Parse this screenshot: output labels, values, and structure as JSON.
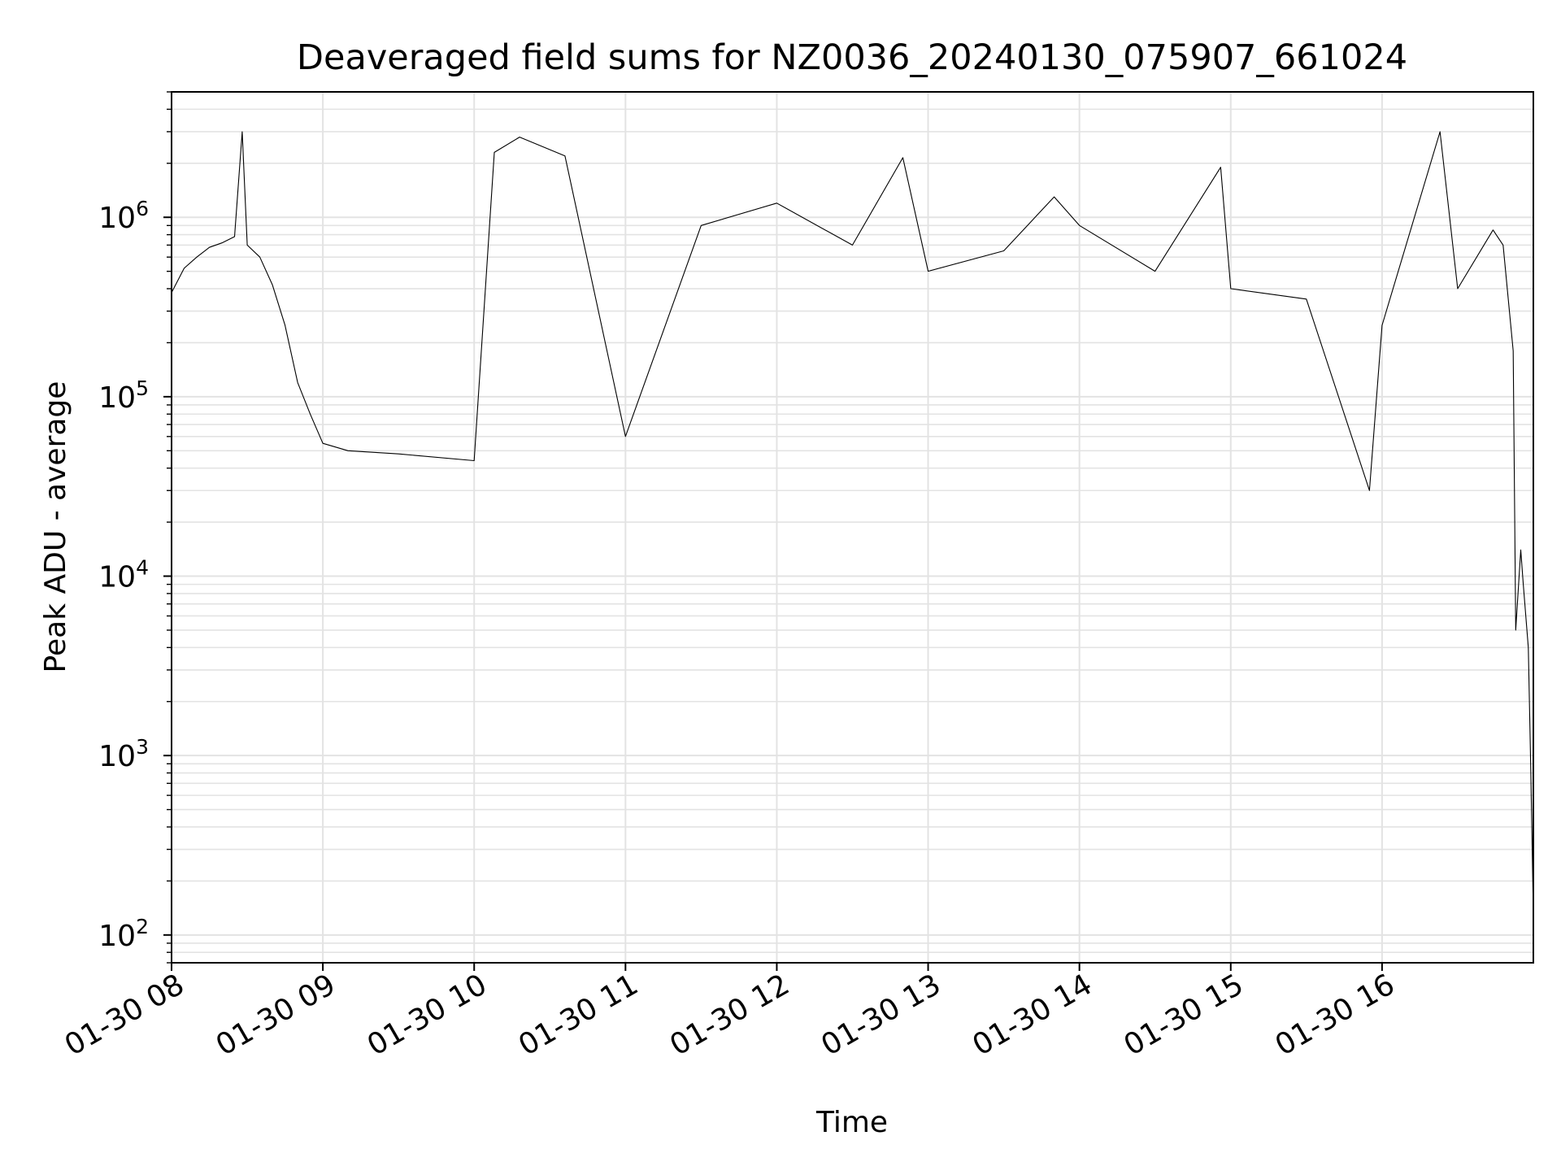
{
  "chart_data": {
    "type": "line",
    "title": "Deaveraged field sums for NZ0036_20240130_075907_661024",
    "xlabel": "Time",
    "ylabel": "Peak ADU - average",
    "x_range": [
      "2024-01-30 08:00",
      "2024-01-30 17:00"
    ],
    "ylim": [
      70,
      5000000
    ],
    "yscale": "log",
    "grid": true,
    "x_ticks": [
      {
        "value": "2024-01-30 08:00",
        "label": "01-30 08"
      },
      {
        "value": "2024-01-30 09:00",
        "label": "01-30 09"
      },
      {
        "value": "2024-01-30 10:00",
        "label": "01-30 10"
      },
      {
        "value": "2024-01-30 11:00",
        "label": "01-30 11"
      },
      {
        "value": "2024-01-30 12:00",
        "label": "01-30 12"
      },
      {
        "value": "2024-01-30 13:00",
        "label": "01-30 13"
      },
      {
        "value": "2024-01-30 14:00",
        "label": "01-30 14"
      },
      {
        "value": "2024-01-30 15:00",
        "label": "01-30 15"
      },
      {
        "value": "2024-01-30 16:00",
        "label": "01-30 16"
      }
    ],
    "y_ticks": [
      {
        "value": 100,
        "base": "10",
        "exp": "2"
      },
      {
        "value": 1000,
        "base": "10",
        "exp": "3"
      },
      {
        "value": 10000,
        "base": "10",
        "exp": "4"
      },
      {
        "value": 100000,
        "base": "10",
        "exp": "5"
      },
      {
        "value": 1000000,
        "base": "10",
        "exp": "6"
      }
    ],
    "series": [
      {
        "color": "#000000",
        "points": [
          [
            "2024-01-30 08:00",
            380000
          ],
          [
            "2024-01-30 08:05",
            520000
          ],
          [
            "2024-01-30 08:10",
            600000
          ],
          [
            "2024-01-30 08:15",
            680000
          ],
          [
            "2024-01-30 08:20",
            720000
          ],
          [
            "2024-01-30 08:25",
            780000
          ],
          [
            "2024-01-30 08:28",
            3000000
          ],
          [
            "2024-01-30 08:30",
            700000
          ],
          [
            "2024-01-30 08:35",
            600000
          ],
          [
            "2024-01-30 08:40",
            420000
          ],
          [
            "2024-01-30 08:45",
            250000
          ],
          [
            "2024-01-30 08:50",
            120000
          ],
          [
            "2024-01-30 08:55",
            80000
          ],
          [
            "2024-01-30 09:00",
            55000
          ],
          [
            "2024-01-30 09:10",
            50000
          ],
          [
            "2024-01-30 09:30",
            48000
          ],
          [
            "2024-01-30 10:00",
            44000
          ],
          [
            "2024-01-30 10:08",
            2300000
          ],
          [
            "2024-01-30 10:18",
            2800000
          ],
          [
            "2024-01-30 10:36",
            2200000
          ],
          [
            "2024-01-30 11:00",
            60000
          ],
          [
            "2024-01-30 11:30",
            900000
          ],
          [
            "2024-01-30 12:00",
            1200000
          ],
          [
            "2024-01-30 12:30",
            700000
          ],
          [
            "2024-01-30 12:50",
            2150000
          ],
          [
            "2024-01-30 13:00",
            500000
          ],
          [
            "2024-01-30 13:30",
            650000
          ],
          [
            "2024-01-30 13:50",
            1300000
          ],
          [
            "2024-01-30 14:00",
            900000
          ],
          [
            "2024-01-30 14:30",
            500000
          ],
          [
            "2024-01-30 14:56",
            1900000
          ],
          [
            "2024-01-30 15:00",
            400000
          ],
          [
            "2024-01-30 15:30",
            350000
          ],
          [
            "2024-01-30 15:55",
            30000
          ],
          [
            "2024-01-30 16:00",
            250000
          ],
          [
            "2024-01-30 16:23",
            3000000
          ],
          [
            "2024-01-30 16:30",
            400000
          ],
          [
            "2024-01-30 16:44",
            850000
          ],
          [
            "2024-01-30 16:48",
            700000
          ],
          [
            "2024-01-30 16:52",
            180000
          ],
          [
            "2024-01-30 16:53",
            5000
          ],
          [
            "2024-01-30 16:55",
            14000
          ],
          [
            "2024-01-30 16:56",
            9000
          ],
          [
            "2024-01-30 16:58",
            4000
          ],
          [
            "2024-01-30 16:59",
            800
          ],
          [
            "2024-01-30 17:00",
            130
          ]
        ]
      }
    ]
  }
}
